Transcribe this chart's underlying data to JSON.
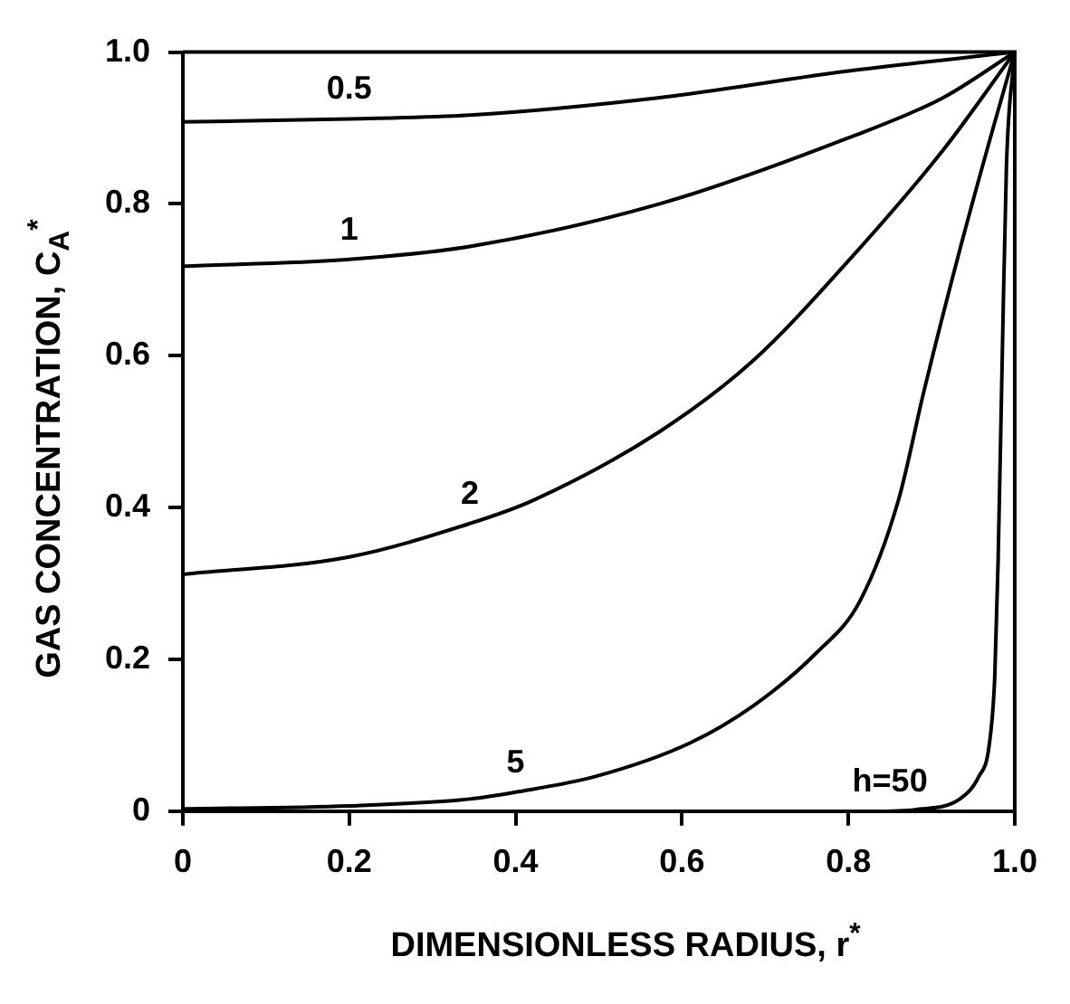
{
  "chart_data": {
    "type": "line",
    "xlabel": "DIMENSIONLESS RADIUS, r$^{*}$",
    "ylabel": "GAS CONCENTRATION, C$_{A}$$^{*}$",
    "xlim": [
      0,
      1
    ],
    "ylim": [
      0,
      1
    ],
    "xticks": [
      0,
      0.2,
      0.4,
      0.6,
      0.8,
      {
        "value": 1,
        "label": "1.0"
      }
    ],
    "yticks": [
      0,
      0.2,
      0.4,
      0.6,
      0.8,
      {
        "value": 1,
        "label": "1.0"
      }
    ],
    "grid": false,
    "legend": false,
    "marker": "none",
    "line_style": "solid",
    "series": [
      {
        "color": "#000000",
        "x": [
          0,
          0.2,
          0.345,
          0.573,
          0.8,
          1
        ],
        "values": [
          0.908,
          0.912,
          0.917,
          0.94,
          0.975,
          1
        ]
      },
      {
        "color": "#000000",
        "x": [
          0,
          0.2,
          0.345,
          0.573,
          0.8,
          0.914,
          1
        ],
        "values": [
          0.718,
          0.727,
          0.744,
          0.8,
          0.887,
          0.94,
          1
        ]
      },
      {
        "color": "#000000",
        "x": [
          0,
          0.2,
          0.345,
          0.42,
          0.573,
          0.686,
          0.8,
          0.914,
          1
        ],
        "values": [
          0.312,
          0.335,
          0.379,
          0.409,
          0.5,
          0.594,
          0.725,
          0.871,
          1
        ]
      },
      {
        "color": "#000000",
        "x": [
          0,
          0.2,
          0.345,
          0.4,
          0.497,
          0.61,
          0.686,
          0.761,
          0.814,
          0.86,
          0.891,
          0.936,
          0.974,
          1
        ],
        "values": [
          0.003,
          0.007,
          0.016,
          0.025,
          0.046,
          0.09,
          0.139,
          0.208,
          0.277,
          0.409,
          0.554,
          0.748,
          0.9,
          1
        ]
      },
      {
        "color": "#000000",
        "x": [
          0.85,
          0.88,
          0.934,
          0.957,
          0.969,
          0.976,
          0.98,
          0.985,
          0.99,
          1
        ],
        "values": [
          0,
          0.002,
          0.016,
          0.046,
          0.085,
          0.178,
          0.33,
          0.6,
          0.85,
          1
        ]
      }
    ],
    "annotations": [
      {
        "text": "0.5",
        "x": 0.2,
        "y": 0.912
      },
      {
        "text": "1",
        "x": 0.2,
        "y": 0.727
      },
      {
        "text": "2",
        "x": 0.345,
        "y": 0.379
      },
      {
        "text": "5",
        "x": 0.4,
        "y": 0.025
      },
      {
        "text": "h=50",
        "x": 0.85,
        "y": 0
      }
    ]
  }
}
